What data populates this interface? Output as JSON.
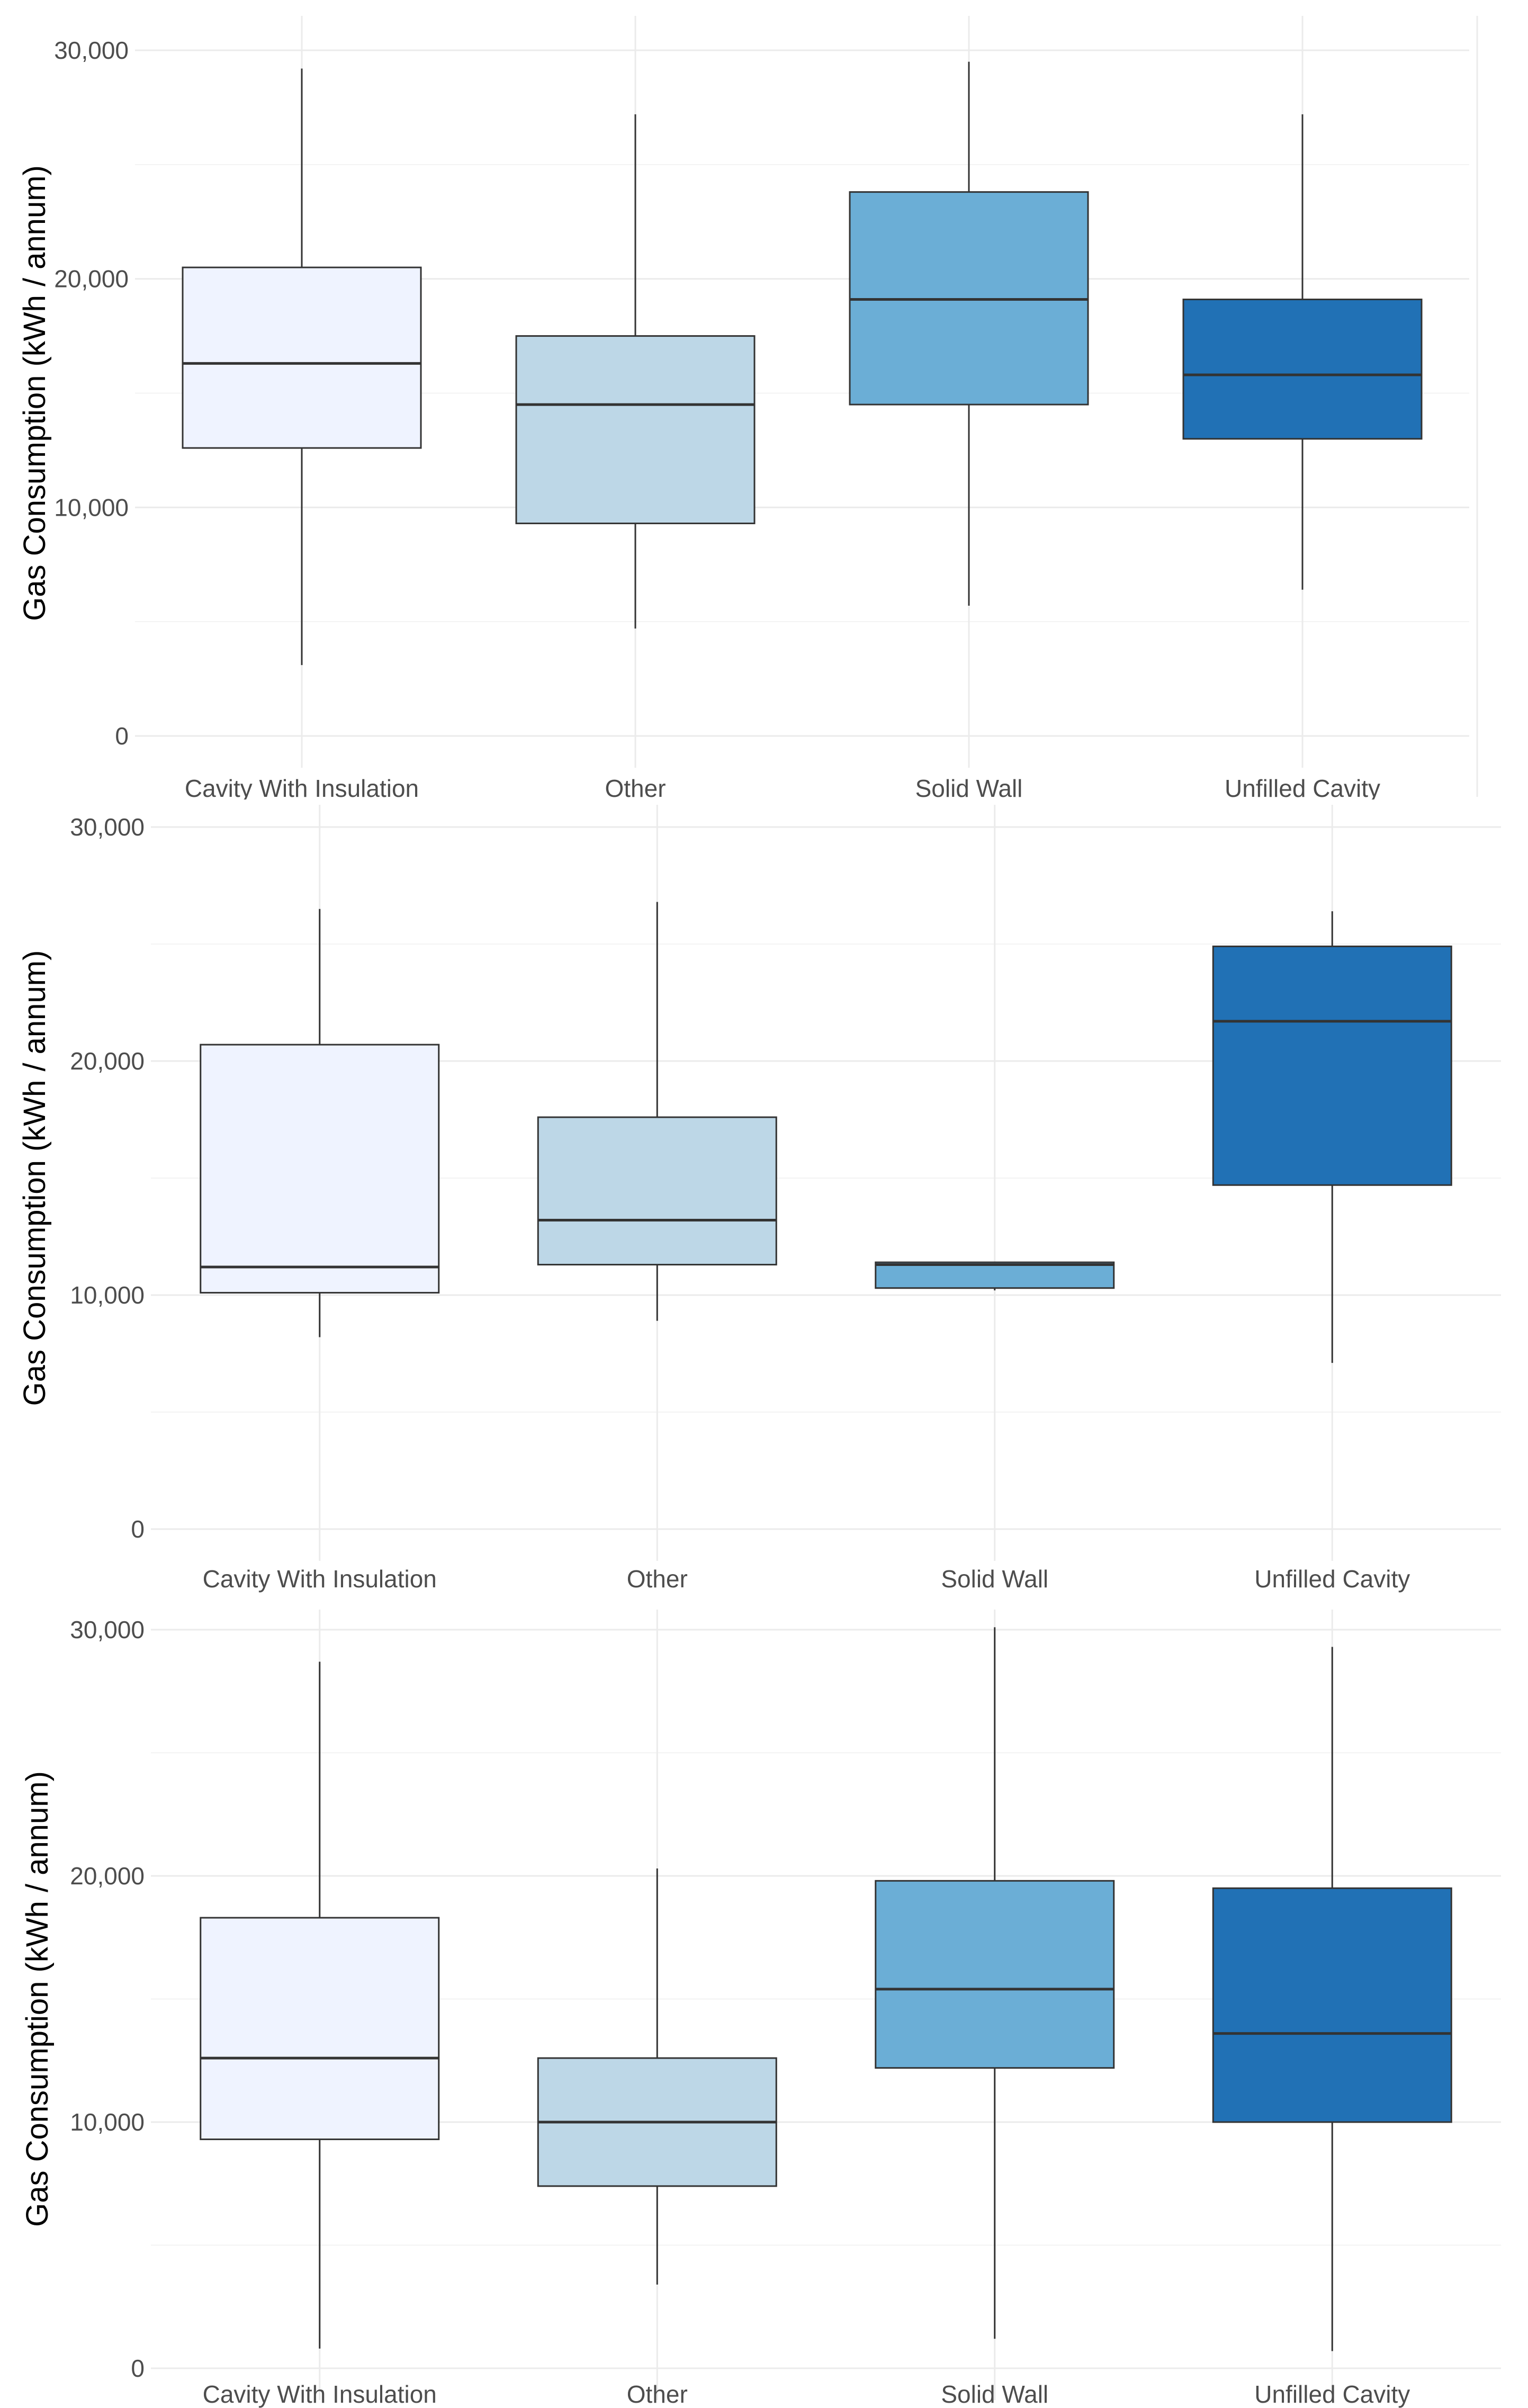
{
  "chart_data": [
    {
      "type": "boxplot",
      "ylabel": "Gas Consumption (kWh / annum)",
      "xlabel": "",
      "ylim": [
        0,
        30000
      ],
      "yticks": [
        0,
        10000,
        20000,
        30000
      ],
      "ytick_labels": [
        "0",
        "10,000",
        "20,000",
        "30,000"
      ],
      "categories": [
        "Cavity With Insulation",
        "Other",
        "Solid Wall",
        "Unfilled Cavity"
      ],
      "colors": [
        "#eff3ff",
        "#bdd7e7",
        "#6baed6",
        "#2171b5"
      ],
      "boxes": [
        {
          "min": 3100,
          "q1": 12600,
          "median": 16300,
          "q3": 20500,
          "max": 29200
        },
        {
          "min": 4700,
          "q1": 9300,
          "median": 14500,
          "q3": 17500,
          "max": 27200
        },
        {
          "min": 5700,
          "q1": 14500,
          "median": 19100,
          "q3": 23800,
          "max": 29500
        },
        {
          "min": 6400,
          "q1": 13000,
          "median": 15800,
          "q3": 19100,
          "max": 27200
        }
      ]
    },
    {
      "type": "boxplot",
      "ylabel": "Gas Consumption (kWh / annum)",
      "xlabel": "",
      "ylim": [
        0,
        30000
      ],
      "yticks": [
        0,
        10000,
        20000,
        30000
      ],
      "ytick_labels": [
        "0",
        "10,000",
        "20,000",
        "30,000"
      ],
      "categories": [
        "Cavity With Insulation",
        "Other",
        "Solid Wall",
        "Unfilled Cavity"
      ],
      "colors": [
        "#eff3ff",
        "#bdd7e7",
        "#6baed6",
        "#2171b5"
      ],
      "boxes": [
        {
          "min": 8200,
          "q1": 10100,
          "median": 11200,
          "q3": 20700,
          "max": 26500
        },
        {
          "min": 8900,
          "q1": 11300,
          "median": 13200,
          "q3": 17600,
          "max": 26800
        },
        {
          "min": 10200,
          "q1": 10300,
          "median": 11300,
          "q3": 11400,
          "max": 11400
        },
        {
          "min": 7100,
          "q1": 14700,
          "median": 21700,
          "q3": 24900,
          "max": 26400
        }
      ]
    },
    {
      "type": "boxplot",
      "ylabel": "Gas Consumption (kWh / annum)",
      "xlabel": "",
      "ylim": [
        0,
        30000
      ],
      "yticks": [
        0,
        10000,
        20000,
        30000
      ],
      "ytick_labels": [
        "0",
        "10,000",
        "20,000",
        "30,000"
      ],
      "categories": [
        "Cavity With Insulation",
        "Other",
        "Solid Wall",
        "Unfilled Cavity"
      ],
      "colors": [
        "#eff3ff",
        "#bdd7e7",
        "#6baed6",
        "#2171b5"
      ],
      "boxes": [
        {
          "min": 800,
          "q1": 9300,
          "median": 12600,
          "q3": 18300,
          "max": 28700
        },
        {
          "min": 3400,
          "q1": 7400,
          "median": 10000,
          "q3": 12600,
          "max": 20300
        },
        {
          "min": 1200,
          "q1": 12200,
          "median": 15400,
          "q3": 19800,
          "max": 30100
        },
        {
          "min": 700,
          "q1": 10000,
          "median": 13600,
          "q3": 19500,
          "max": 29300
        }
      ]
    }
  ]
}
